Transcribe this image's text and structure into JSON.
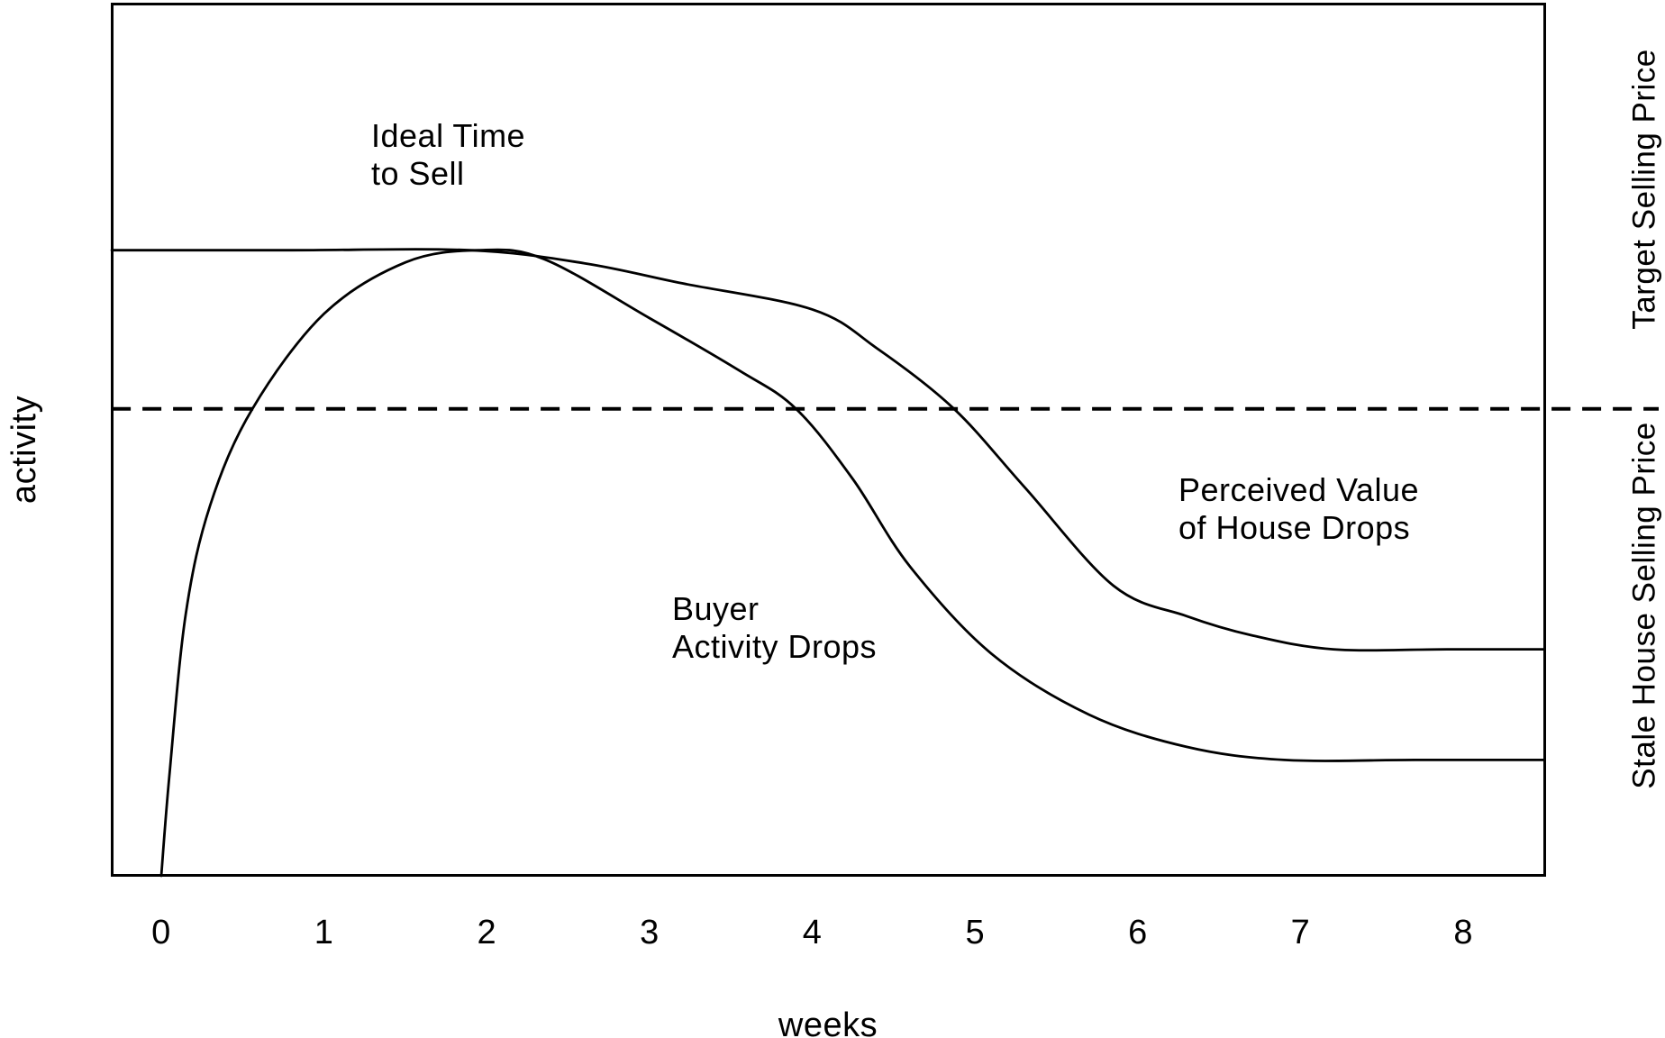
{
  "colors": {
    "line": "#000000",
    "background": "#ffffff"
  },
  "chart_data": {
    "type": "line",
    "title": "",
    "xlabel": "weeks",
    "ylabel": "activity",
    "x_ticks": [
      "0",
      "1",
      "2",
      "3",
      "4",
      "5",
      "6",
      "7",
      "8"
    ],
    "xlim": [
      -0.304,
      8.5
    ],
    "ylim": [
      0,
      1
    ],
    "grid": false,
    "legend": "none",
    "series": [
      {
        "name": "Buyer Activity",
        "points": [
          [
            0,
            0
          ],
          [
            0.05,
            0.115
          ],
          [
            0.15,
            0.3
          ],
          [
            0.3,
            0.425
          ],
          [
            0.56,
            0.536
          ],
          [
            1,
            0.645
          ],
          [
            1.5,
            0.704
          ],
          [
            1.95,
            0.718
          ],
          [
            2.35,
            0.708
          ],
          [
            3,
            0.64
          ],
          [
            3.55,
            0.58
          ],
          [
            3.9,
            0.536
          ],
          [
            4.25,
            0.455
          ],
          [
            4.6,
            0.355
          ],
          [
            5.1,
            0.255
          ],
          [
            5.7,
            0.185
          ],
          [
            6.3,
            0.148
          ],
          [
            6.9,
            0.133
          ],
          [
            7.7,
            0.133
          ],
          [
            8.5,
            0.133
          ]
        ]
      },
      {
        "name": "Perceived Value of House",
        "points": [
          [
            -0.304,
            0.718
          ],
          [
            0.8,
            0.718
          ],
          [
            1.9,
            0.718
          ],
          [
            2.6,
            0.703
          ],
          [
            3.2,
            0.68
          ],
          [
            4,
            0.65
          ],
          [
            4.4,
            0.605
          ],
          [
            4.87,
            0.536
          ],
          [
            5.3,
            0.447
          ],
          [
            5.85,
            0.333
          ],
          [
            6.3,
            0.298
          ],
          [
            6.7,
            0.276
          ],
          [
            7.2,
            0.26
          ],
          [
            7.9,
            0.26
          ],
          [
            8.5,
            0.26
          ]
        ]
      }
    ],
    "dashed_reference_line": {
      "value": 0.536,
      "from_week": -0.304,
      "to_week": 9.2
    },
    "right_axis_labels": [
      {
        "text": "Target Selling Price",
        "at_value": 0.788
      },
      {
        "text": "Stale House Selling Price",
        "at_value": 0.31
      }
    ],
    "annotations": [
      {
        "lines": [
          "Ideal Time",
          "to Sell"
        ],
        "week": 1.29,
        "value": 0.837
      },
      {
        "lines": [
          "Buyer",
          "Activity Drops"
        ],
        "week": 3.14,
        "value": 0.294
      },
      {
        "lines": [
          "Perceived Value",
          "of House Drops"
        ],
        "week": 6.25,
        "value": 0.43
      }
    ]
  }
}
